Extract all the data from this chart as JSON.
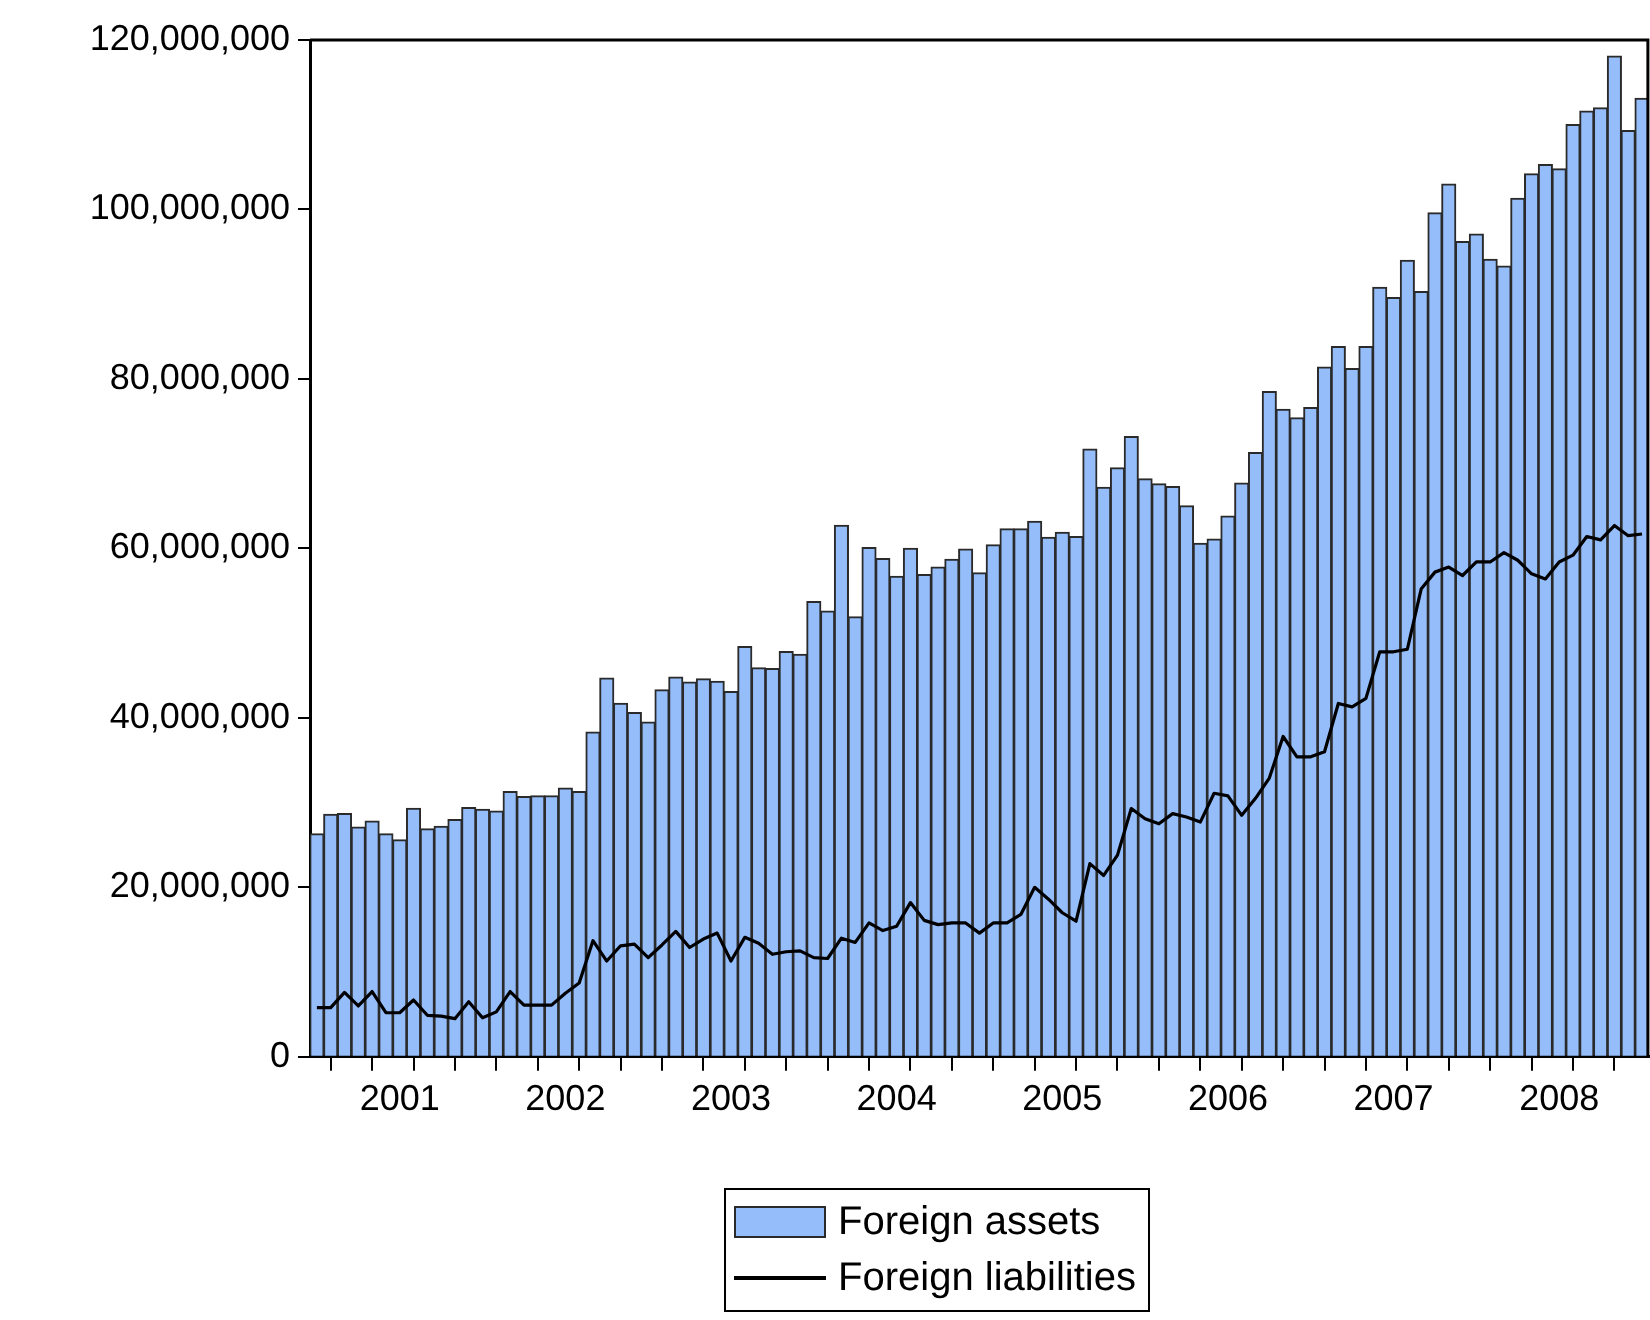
{
  "chart_data": {
    "type": "bar",
    "categories": [
      null,
      null,
      null,
      null,
      null,
      null,
      "2001",
      null,
      null,
      null,
      null,
      null,
      null,
      null,
      null,
      null,
      null,
      null,
      "2002",
      null,
      null,
      null,
      null,
      null,
      null,
      null,
      null,
      null,
      null,
      null,
      "2003",
      null,
      null,
      null,
      null,
      null,
      null,
      null,
      null,
      null,
      null,
      null,
      "2004",
      null,
      null,
      null,
      null,
      null,
      null,
      null,
      null,
      null,
      null,
      null,
      "2005",
      null,
      null,
      null,
      null,
      null,
      null,
      null,
      null,
      null,
      null,
      null,
      "2006",
      null,
      null,
      null,
      null,
      null,
      null,
      null,
      null,
      null,
      null,
      null,
      "2007",
      null,
      null,
      null,
      null,
      null,
      null,
      null,
      null,
      null,
      null,
      null,
      "2008",
      null,
      null,
      null,
      null,
      null,
      null
    ],
    "series": [
      {
        "name": "Foreign assets",
        "color": "#94bdfa",
        "values": [
          26300000,
          28600000,
          28700000,
          27100000,
          27800000,
          26300000,
          25600000,
          29300000,
          26900000,
          27200000,
          28000000,
          29400000,
          29200000,
          29000000,
          31300000,
          30700000,
          30800000,
          30800000,
          31700000,
          31300000,
          38300000,
          44700000,
          41700000,
          40600000,
          39500000,
          43300000,
          44800000,
          44200000,
          44600000,
          44300000,
          43100000,
          48400000,
          45900000,
          45800000,
          47800000,
          47500000,
          53700000,
          52600000,
          62700000,
          51900000,
          60100000,
          58800000,
          56700000,
          60000000,
          56900000,
          57800000,
          58700000,
          59900000,
          57100000,
          60400000,
          62300000,
          62300000,
          63200000,
          61300000,
          61900000,
          61400000,
          71700000,
          67200000,
          69500000,
          73200000,
          68200000,
          67600000,
          67300000,
          65000000,
          60600000,
          61100000,
          63800000,
          67700000,
          71300000,
          78500000,
          76400000,
          75400000,
          76600000,
          81400000,
          83800000,
          81200000,
          83800000,
          90800000,
          89600000,
          94000000,
          90300000,
          99600000,
          103000000,
          96200000,
          97100000,
          94100000,
          93300000,
          101300000,
          104200000,
          105300000,
          104800000,
          110000000,
          111600000,
          112000000,
          118100000,
          109300000,
          113100000
        ]
      },
      {
        "name": "Foreign liabilities",
        "type": "line",
        "color": "#000000",
        "values": [
          5800000,
          5800000,
          7600000,
          6000000,
          7700000,
          5200000,
          5200000,
          6700000,
          4900000,
          4800000,
          4500000,
          6500000,
          4600000,
          5300000,
          7700000,
          6100000,
          6100000,
          6100000,
          7500000,
          8700000,
          13700000,
          11300000,
          13100000,
          13300000,
          11700000,
          13200000,
          14800000,
          12900000,
          13900000,
          14600000,
          11300000,
          14100000,
          13400000,
          12100000,
          12400000,
          12500000,
          11700000,
          11600000,
          14000000,
          13500000,
          15800000,
          14900000,
          15400000,
          18200000,
          16100000,
          15600000,
          15800000,
          15800000,
          14600000,
          15800000,
          15800000,
          16800000,
          20000000,
          18600000,
          17000000,
          16000000,
          22800000,
          21400000,
          23800000,
          29300000,
          28100000,
          27500000,
          28700000,
          28300000,
          27700000,
          31100000,
          30800000,
          28500000,
          30500000,
          32900000,
          37800000,
          35400000,
          35400000,
          36000000,
          41700000,
          41300000,
          42300000,
          47800000,
          47800000,
          48100000,
          55200000,
          57200000,
          57800000,
          56800000,
          58400000,
          58400000,
          59500000,
          58600000,
          57000000,
          56400000,
          58400000,
          59200000,
          61400000,
          61000000,
          62700000,
          61500000,
          61700000
        ]
      }
    ],
    "ylim": [
      0,
      120000000
    ],
    "yticks": [
      {
        "value": 0,
        "label": "0"
      },
      {
        "value": 20000000,
        "label": "20,000,000"
      },
      {
        "value": 40000000,
        "label": "40,000,000"
      },
      {
        "value": 60000000,
        "label": "60,000,000"
      },
      {
        "value": 80000000,
        "label": "80,000,000"
      },
      {
        "value": 100000000,
        "label": "100,000,000"
      },
      {
        "value": 120000000,
        "label": "120,000,000"
      }
    ],
    "grid": false,
    "legend": "bottom"
  }
}
